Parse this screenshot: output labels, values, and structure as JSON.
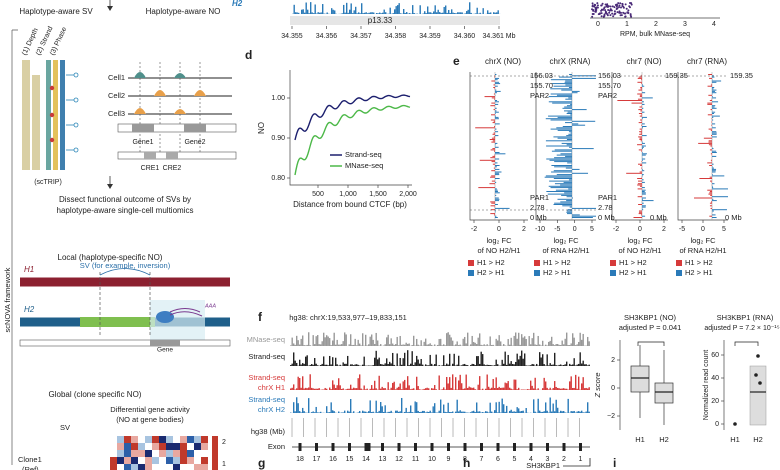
{
  "left": {
    "sv_title": "Haplotype-aware SV",
    "no_title": "Haplotype-aware NO",
    "tracks": [
      "(1) Depth",
      "(2) Strand",
      "(3) Phase"
    ],
    "cells": [
      "Cell1",
      "Cell2",
      "Cell3"
    ],
    "genes": [
      "Gene1",
      "Gene2"
    ],
    "cres": [
      "CRE1",
      "CRE2"
    ],
    "sctrip": "(scTRIP)",
    "dissect": [
      "Dissect functional outcome of SVs by",
      "haplotype-aware single-cell multiomics"
    ],
    "local_title": "Local (haplotype-specific NO)",
    "h1": "H1",
    "sv_example": "SV (for example, inversion)",
    "h2": "H2",
    "gene": "Gene",
    "polya": "AAA",
    "global_title": "Global (clone specific NO)",
    "diff_activity": [
      "Differential gene activity",
      "(NO at gene bodies)"
    ],
    "sv": "SV",
    "clone": "Clone1",
    "ref": "(Ref)",
    "scale": [
      "2",
      "1"
    ],
    "framework": "scNOVA framework"
  },
  "top": {
    "h2": "H2",
    "band": "p13.33",
    "ticks": [
      "34.355",
      "34.356",
      "34.357",
      "34.358",
      "34.359",
      "34.360",
      "34.361 Mb"
    ],
    "rpm_ticks": [
      "0",
      "1",
      "2",
      "3",
      "4"
    ],
    "rpm_label": "RPM, bulk MNase-seq"
  },
  "panel_d": {
    "letter": "d",
    "ylabel": "NO",
    "yticks": [
      "1.00",
      "0.90",
      "0.80"
    ],
    "xticks": [
      "500",
      "1,000",
      "1,500",
      "2,000"
    ],
    "xlabel": "Distance from bound CTCF (bp)",
    "legend": [
      "Strand-seq",
      "MNase-seq"
    ]
  },
  "panel_e": {
    "letter": "e",
    "titles": [
      "chrX (NO)",
      "chrX (RNA)",
      "chr7 (NO)",
      "chr7 (RNA)"
    ],
    "chrx_labels": [
      "156.03",
      "155.70",
      "PAR2",
      "PAR1",
      "2.78",
      "0 Mb"
    ],
    "chr7_labels": [
      "159.35",
      "0 Mb"
    ],
    "xticks": [
      [
        "-2",
        "0",
        "2"
      ],
      [
        "-10",
        "-5",
        "0",
        "5"
      ],
      [
        "-2",
        "0",
        "2"
      ],
      [
        "-5",
        "0",
        "5"
      ]
    ],
    "xlabels": [
      [
        "log₂ FC",
        "of NO H2/H1"
      ],
      [
        "log₂ FC",
        "of RNA H2/H1"
      ],
      [
        "log₂ FC",
        "of NO H2/H1"
      ],
      [
        "log₂ FC",
        "of RNA H2/H1"
      ]
    ],
    "legend": [
      "H1 > H2",
      "H2 > H1"
    ]
  },
  "panel_f": {
    "letter": "f",
    "title": "hg38: chrX:19,533,977–19,833,151",
    "tracks": [
      "MNase-seq",
      "Strand-seq",
      "Strand-seq",
      "chrX H1",
      "Strand-seq",
      "chrX H2",
      "hg38 (Mb)",
      "Exon"
    ],
    "exons": [
      "18",
      "17",
      "16",
      "15",
      "14",
      "13",
      "12",
      "11",
      "10",
      "9",
      "8",
      "7",
      "6",
      "5",
      "4",
      "3",
      "2",
      "1"
    ],
    "gene": "SH3KBP1",
    "no_box": {
      "title": "SH3KBP1 (NO)",
      "p": "adjusted P = 0.041",
      "ylabel": "Z score",
      "yticks": [
        "2",
        "0",
        "−2"
      ],
      "groups": [
        "H1",
        "H2"
      ]
    },
    "rna_box": {
      "title": "SH3KBP1 (RNA)",
      "p": "adjusted P = 7.2 × 10⁻¹⁵",
      "ylabel": "Normalized read count",
      "yticks": [
        "60",
        "40",
        "20",
        "0"
      ],
      "groups": [
        "H1",
        "H2"
      ]
    }
  },
  "letters": [
    "g",
    "h",
    "i"
  ]
}
